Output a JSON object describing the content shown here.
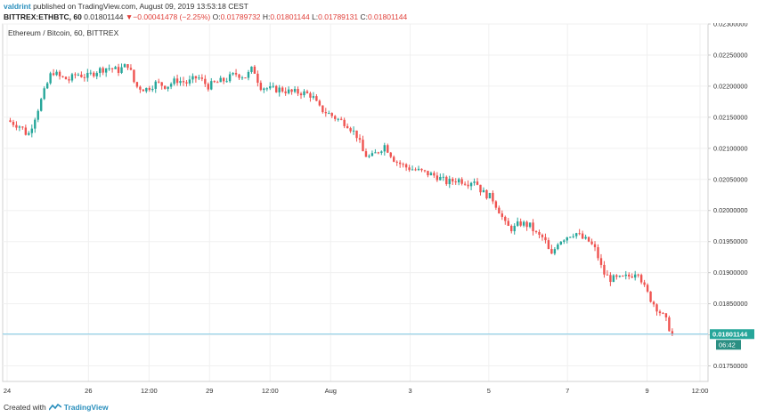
{
  "header": {
    "author": "valdrint",
    "published_text": "published on TradingView.com, August 09, 2019 13:53:18 CEST",
    "symbol": "BITTREX:ETHBTC, 60",
    "last": "0.01801144",
    "change_arrow": "▼",
    "change": "−0.00041478 (−2.25%)",
    "o_label": "O:",
    "o_value": "0.01789732",
    "h_label": "H:",
    "h_value": "0.01801144",
    "l_label": "L:",
    "l_value": "0.01789131",
    "c_label": "C:",
    "c_value": "0.01801144"
  },
  "footer": {
    "created_with": "Created with",
    "brand": "TradingView"
  },
  "colors": {
    "up": "#26a69a",
    "down": "#ef5350",
    "price_line": "#7ec8e3",
    "price_tag": "#26a69a",
    "timer_tag": "#2b8f83",
    "axis_text": "#333333",
    "border": "#d0d0d0"
  },
  "chart_data": {
    "type": "candlestick",
    "title": "Ethereum / Bitcoin, 60, BITTREX",
    "ylim": [
      0.01725,
      0.023
    ],
    "y_ticks": [
      "0.02300000",
      "0.02250000",
      "0.02200000",
      "0.02150000",
      "0.02100000",
      "0.02050000",
      "0.02000000",
      "0.01950000",
      "0.01900000",
      "0.01850000",
      "0.01800000",
      "0.01750000"
    ],
    "x_ticks": [
      {
        "label": "24",
        "pos": 0.0
      },
      {
        "label": "26",
        "pos": 0.1174
      },
      {
        "label": "12:00",
        "pos": 0.2048
      },
      {
        "label": "29",
        "pos": 0.2921
      },
      {
        "label": "12:00",
        "pos": 0.3795
      },
      {
        "label": "Aug",
        "pos": 0.4669
      },
      {
        "label": "3",
        "pos": 0.5817
      },
      {
        "label": "5",
        "pos": 0.6952
      },
      {
        "label": "7",
        "pos": 0.8087
      },
      {
        "label": "9",
        "pos": 0.9236
      },
      {
        "label": "12:00",
        "pos": 1.0
      }
    ],
    "last_price": "0.01801144",
    "countdown": "06:42",
    "grid": true,
    "path": [
      [
        0.0,
        0.02145
      ],
      [
        0.02,
        0.02135
      ],
      [
        0.03,
        0.0212
      ],
      [
        0.04,
        0.0215
      ],
      [
        0.055,
        0.02195
      ],
      [
        0.065,
        0.02225
      ],
      [
        0.075,
        0.02215
      ],
      [
        0.09,
        0.0221
      ],
      [
        0.1,
        0.0222
      ],
      [
        0.115,
        0.02215
      ],
      [
        0.13,
        0.02225
      ],
      [
        0.145,
        0.0223
      ],
      [
        0.16,
        0.02225
      ],
      [
        0.175,
        0.02235
      ],
      [
        0.185,
        0.022
      ],
      [
        0.2,
        0.02195
      ],
      [
        0.215,
        0.02205
      ],
      [
        0.23,
        0.022
      ],
      [
        0.245,
        0.0221
      ],
      [
        0.26,
        0.02205
      ],
      [
        0.275,
        0.02215
      ],
      [
        0.29,
        0.022
      ],
      [
        0.3,
        0.02205
      ],
      [
        0.315,
        0.0221
      ],
      [
        0.33,
        0.0222
      ],
      [
        0.345,
        0.02215
      ],
      [
        0.355,
        0.0223
      ],
      [
        0.365,
        0.022
      ],
      [
        0.38,
        0.02195
      ],
      [
        0.395,
        0.02195
      ],
      [
        0.41,
        0.0219
      ],
      [
        0.425,
        0.0219
      ],
      [
        0.44,
        0.02185
      ],
      [
        0.45,
        0.02165
      ],
      [
        0.465,
        0.02155
      ],
      [
        0.48,
        0.02145
      ],
      [
        0.49,
        0.0214
      ],
      [
        0.505,
        0.0212
      ],
      [
        0.515,
        0.0209
      ],
      [
        0.525,
        0.02085
      ],
      [
        0.535,
        0.02095
      ],
      [
        0.545,
        0.02105
      ],
      [
        0.56,
        0.0208
      ],
      [
        0.575,
        0.0207
      ],
      [
        0.59,
        0.02065
      ],
      [
        0.605,
        0.0206
      ],
      [
        0.62,
        0.02055
      ],
      [
        0.635,
        0.02045
      ],
      [
        0.65,
        0.0205
      ],
      [
        0.665,
        0.02045
      ],
      [
        0.675,
        0.0205
      ],
      [
        0.685,
        0.0203
      ],
      [
        0.7,
        0.0202
      ],
      [
        0.71,
        0.02
      ],
      [
        0.72,
        0.01975
      ],
      [
        0.73,
        0.0197
      ],
      [
        0.74,
        0.0198
      ],
      [
        0.755,
        0.01975
      ],
      [
        0.765,
        0.0196
      ],
      [
        0.775,
        0.01955
      ],
      [
        0.785,
        0.01925
      ],
      [
        0.795,
        0.0195
      ],
      [
        0.81,
        0.0196
      ],
      [
        0.82,
        0.01965
      ],
      [
        0.83,
        0.01955
      ],
      [
        0.84,
        0.0195
      ],
      [
        0.85,
        0.01935
      ],
      [
        0.86,
        0.019
      ],
      [
        0.87,
        0.0189
      ],
      [
        0.885,
        0.0189
      ],
      [
        0.9,
        0.01895
      ],
      [
        0.91,
        0.01905
      ],
      [
        0.92,
        0.01875
      ],
      [
        0.93,
        0.01855
      ],
      [
        0.94,
        0.0184
      ],
      [
        0.95,
        0.01825
      ],
      [
        0.96,
        0.018
      ]
    ]
  }
}
